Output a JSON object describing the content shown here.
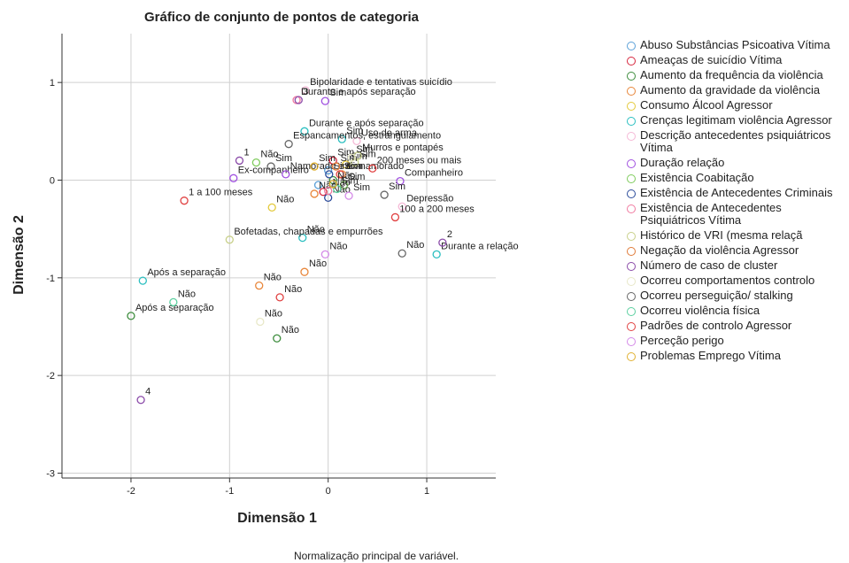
{
  "chart_data": {
    "type": "scatter",
    "title": "Gráfico de conjunto de pontos de categoria",
    "x_label": "Dimensão 1",
    "y_label": "Dimensão 2",
    "footnote": "Normalização principal de variável.",
    "xlim": [
      -2.7,
      1.7
    ],
    "ylim": [
      -3.05,
      1.5
    ],
    "xticks": [
      -2,
      -1,
      0,
      1
    ],
    "yticks": [
      1,
      0,
      -1,
      -2,
      -3
    ],
    "grid": true,
    "legend": "right",
    "series": [
      {
        "name": "Abuso Substâncias Psicoativa Vítima",
        "color": "#5aa0d8",
        "x": [
          0.0,
          -0.1
        ],
        "values": [
          0.1,
          -0.05
        ],
        "labels": [
          null,
          null
        ]
      },
      {
        "name": "Ameaças de suicídio Vítima",
        "color": "#d7263d",
        "x": [
          0.05,
          -0.05
        ],
        "values": [
          0.2,
          -0.12
        ],
        "labels": [
          "Sim",
          null
        ]
      },
      {
        "name": "Aumento da frequência da violência",
        "color": "#3c8c3c",
        "x": [
          -0.52,
          -2.0,
          0.05
        ],
        "values": [
          -1.62,
          -1.39,
          0.0
        ],
        "labels": [
          "Não",
          "Após a separação",
          null
        ]
      },
      {
        "name": "Aumento da gravidade da violência",
        "color": "#e8863a",
        "x": [
          -0.7,
          -0.24,
          -0.14,
          0.14
        ],
        "values": [
          -1.08,
          -0.94,
          -0.14,
          0.06
        ],
        "labels": [
          "Não",
          "Não",
          "Não",
          "Sim"
        ]
      },
      {
        "name": "Consumo Álcool Agressor",
        "color": "#e3c93a",
        "x": [
          -0.57,
          0.18
        ],
        "values": [
          -0.28,
          0.16
        ],
        "labels": [
          "Não",
          "Sim"
        ]
      },
      {
        "name": "Crenças legitimam violência Agressor",
        "color": "#2bbfc0",
        "x": [
          -1.88,
          -0.26,
          0.14,
          1.1,
          -0.24
        ],
        "values": [
          -1.03,
          -0.59,
          0.42,
          -0.76,
          0.5
        ],
        "labels": [
          "Após a separação",
          "Não",
          "Sim",
          "Durante a relação",
          "Durante e após separação"
        ]
      },
      {
        "name": "Descrição antecedentes psiquiátricos Vítima",
        "color": "#f5b8d6",
        "x": [
          -0.23,
          0.29,
          0.75
        ],
        "values": [
          0.92,
          0.4,
          -0.27
        ],
        "labels": [
          "Bipolaridade e tentativas suicídio",
          "Uso de arma",
          "Depressão"
        ]
      },
      {
        "name": "Duração relação",
        "color": "#a050e0",
        "x": [
          -0.03,
          -0.96,
          0.73,
          -0.43
        ],
        "values": [
          0.81,
          0.02,
          -0.01,
          0.06
        ],
        "labels": [
          "Sim",
          "Ex-companheiro",
          "Companheiro",
          "Namorado e ex-namorado"
        ]
      },
      {
        "name": "Existência Coabitação",
        "color": "#7ecb5c",
        "x": [
          -0.73,
          0.16
        ],
        "values": [
          0.18,
          -0.05
        ],
        "labels": [
          "Não",
          "Sim"
        ]
      },
      {
        "name": "Existência de Antecedentes Criminais",
        "color": "#2a4a9a",
        "x": [
          0.01,
          0.0
        ],
        "values": [
          0.06,
          -0.18
        ],
        "labels": [
          "Sim",
          "Não"
        ]
      },
      {
        "name": "Existência de Antecedentes Psiquiátricos Vítima",
        "color": "#f07aa0",
        "x": [
          -0.32,
          0.0
        ],
        "values": [
          0.82,
          -0.11
        ],
        "labels": [
          "Durante e após separação",
          "Não"
        ]
      },
      {
        "name": "Histórico de VRI (mesma relaçã",
        "color": "#c8d08a",
        "x": [
          -1.0,
          0.27,
          0.3
        ],
        "values": [
          -0.61,
          0.18,
          0.25
        ],
        "labels": [
          "Bofetadas, chapadas e empurrões",
          "Sim",
          "Murros e pontapés"
        ]
      },
      {
        "name": "Negação da violência Agressor",
        "color": "#e07b39",
        "x": [
          0.08
        ],
        "values": [
          0.14
        ],
        "labels": [
          "Sim"
        ]
      },
      {
        "name": "Número de caso de cluster",
        "color": "#8a4aa8",
        "x": [
          -1.9,
          -0.3,
          1.16,
          -0.9
        ],
        "values": [
          -2.25,
          0.82,
          -0.64,
          0.2
        ],
        "labels": [
          "4",
          "3",
          "2",
          "1"
        ]
      },
      {
        "name": "Ocorreu comportamentos controlo",
        "color": "#e8e8c8",
        "x": [
          -0.69,
          0.24
        ],
        "values": [
          -1.45,
          0.23
        ],
        "labels": [
          "Não",
          "Sim"
        ]
      },
      {
        "name": "Ocorreu perseguição/ stalking",
        "color": "#666666",
        "x": [
          -0.58,
          0.57,
          0.75,
          -0.4
        ],
        "values": [
          0.14,
          -0.15,
          -0.75,
          0.37
        ],
        "labels": [
          "Sim",
          "Sim",
          "Não",
          "Espancamentos, estrangulamento"
        ]
      },
      {
        "name": "Ocorreu violência física",
        "color": "#5cd0a0",
        "x": [
          -1.57,
          0.09
        ],
        "values": [
          -1.25,
          -0.09
        ],
        "labels": [
          "Não",
          "Sim"
        ]
      },
      {
        "name": "Padrões de controlo Agressor",
        "color": "#e04040",
        "x": [
          -1.46,
          -0.49,
          0.12,
          0.45,
          0.68
        ],
        "values": [
          -0.21,
          -1.2,
          0.06,
          0.12,
          -0.38
        ],
        "labels": [
          "1 a 100 meses",
          "Não",
          "Sim",
          "200 meses ou mais",
          "100 a 200 meses"
        ]
      },
      {
        "name": "Perceção perigo",
        "color": "#d48ae8",
        "x": [
          -0.03,
          0.21
        ],
        "values": [
          -0.76,
          -0.16
        ],
        "labels": [
          "Não",
          "Sim"
        ]
      },
      {
        "name": "Problemas Emprego Vítima",
        "color": "#e0b030",
        "x": [
          -0.14,
          0.05
        ],
        "values": [
          0.14,
          -0.04
        ],
        "labels": [
          "Sim",
          "Não"
        ]
      }
    ]
  }
}
